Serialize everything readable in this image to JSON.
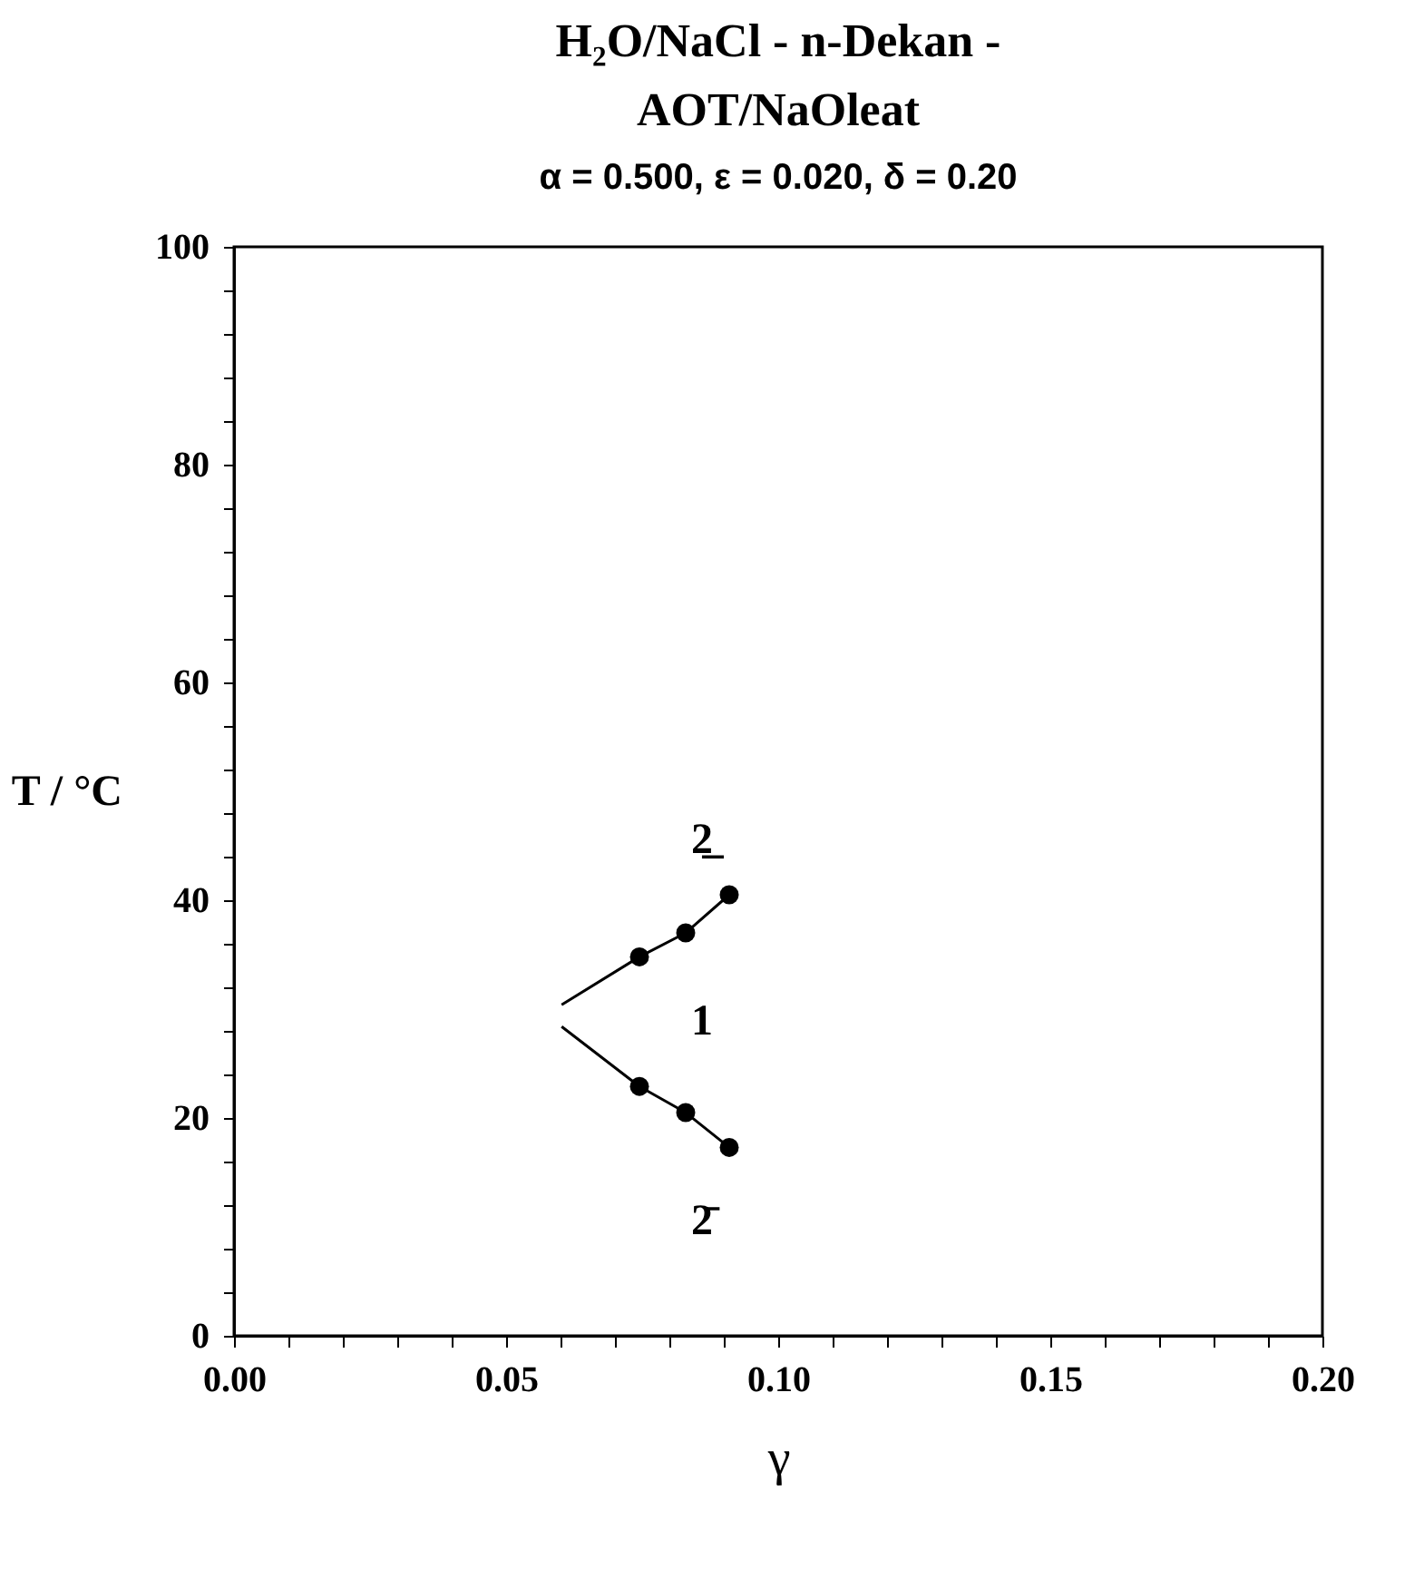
{
  "chart_data": {
    "type": "line",
    "title": [
      "H₂O/NaCl - n-Dekan -",
      "AOT/NaOleat"
    ],
    "subtitle": "α = 0.500, ε = 0.020, δ = 0.20",
    "xlabel": "γ",
    "ylabel": "T / °C",
    "xlim": [
      0,
      0.2
    ],
    "ylim": [
      0,
      100
    ],
    "xticks": [
      {
        "value": 0,
        "label": "0.00"
      },
      {
        "value": 0.01,
        "label": null
      },
      {
        "value": 0.02,
        "label": null
      },
      {
        "value": 0.03,
        "label": null
      },
      {
        "value": 0.04,
        "label": null
      },
      {
        "value": 0.05,
        "label": "0.05"
      },
      {
        "value": 0.06,
        "label": null
      },
      {
        "value": 0.07,
        "label": null
      },
      {
        "value": 0.08,
        "label": null
      },
      {
        "value": 0.09,
        "label": null
      },
      {
        "value": 0.1,
        "label": "0.10"
      },
      {
        "value": 0.11,
        "label": null
      },
      {
        "value": 0.12,
        "label": null
      },
      {
        "value": 0.13,
        "label": null
      },
      {
        "value": 0.14,
        "label": null
      },
      {
        "value": 0.15,
        "label": "0.15"
      },
      {
        "value": 0.16,
        "label": null
      },
      {
        "value": 0.17,
        "label": null
      },
      {
        "value": 0.18,
        "label": null
      },
      {
        "value": 0.19,
        "label": null
      },
      {
        "value": 0.2,
        "label": "0.20"
      }
    ],
    "yticks": [
      0,
      {
        "value": 4,
        "label": null
      },
      {
        "value": 8,
        "label": null
      },
      {
        "value": 12,
        "label": null
      },
      {
        "value": 16,
        "label": null
      },
      20,
      {
        "value": 24,
        "label": null
      },
      {
        "value": 28,
        "label": null
      },
      {
        "value": 32,
        "label": null
      },
      {
        "value": 36,
        "label": null
      },
      40,
      {
        "value": 44,
        "label": null
      },
      {
        "value": 48,
        "label": null
      },
      {
        "value": 52,
        "label": null
      },
      {
        "value": 56,
        "label": null
      },
      60,
      {
        "value": 64,
        "label": null
      },
      {
        "value": 68,
        "label": null
      },
      {
        "value": 72,
        "label": null
      },
      {
        "value": 76,
        "label": null
      },
      80,
      {
        "value": 84,
        "label": null
      },
      {
        "value": 88,
        "label": null
      },
      {
        "value": 92,
        "label": null
      },
      {
        "value": 96,
        "label": null
      },
      100
    ],
    "grid": false,
    "series": [
      {
        "marker": "none",
        "color": "#000000",
        "x": [
          0.0602,
          0.0745,
          0.083,
          0.091
        ],
        "values": [
          30.4,
          34.8,
          37.0,
          40.5
        ]
      },
      {
        "marker": "none",
        "color": "#000000",
        "x": [
          0.0602,
          0.0745,
          0.083,
          0.091
        ],
        "values": [
          28.4,
          22.9,
          20.5,
          17.3
        ]
      },
      {
        "type": "scatter",
        "marker": "circle",
        "color": "#000000",
        "x": [
          0.0745,
          0.083,
          0.091
        ],
        "values": [
          34.8,
          37.0,
          40.5
        ]
      },
      {
        "type": "scatter",
        "marker": "circle",
        "color": "#000000",
        "x": [
          0.0745,
          0.083,
          0.091
        ],
        "values": [
          22.9,
          20.5,
          17.3
        ]
      }
    ],
    "annotations": [
      "2̲",
      "1",
      "2̄"
    ]
  }
}
